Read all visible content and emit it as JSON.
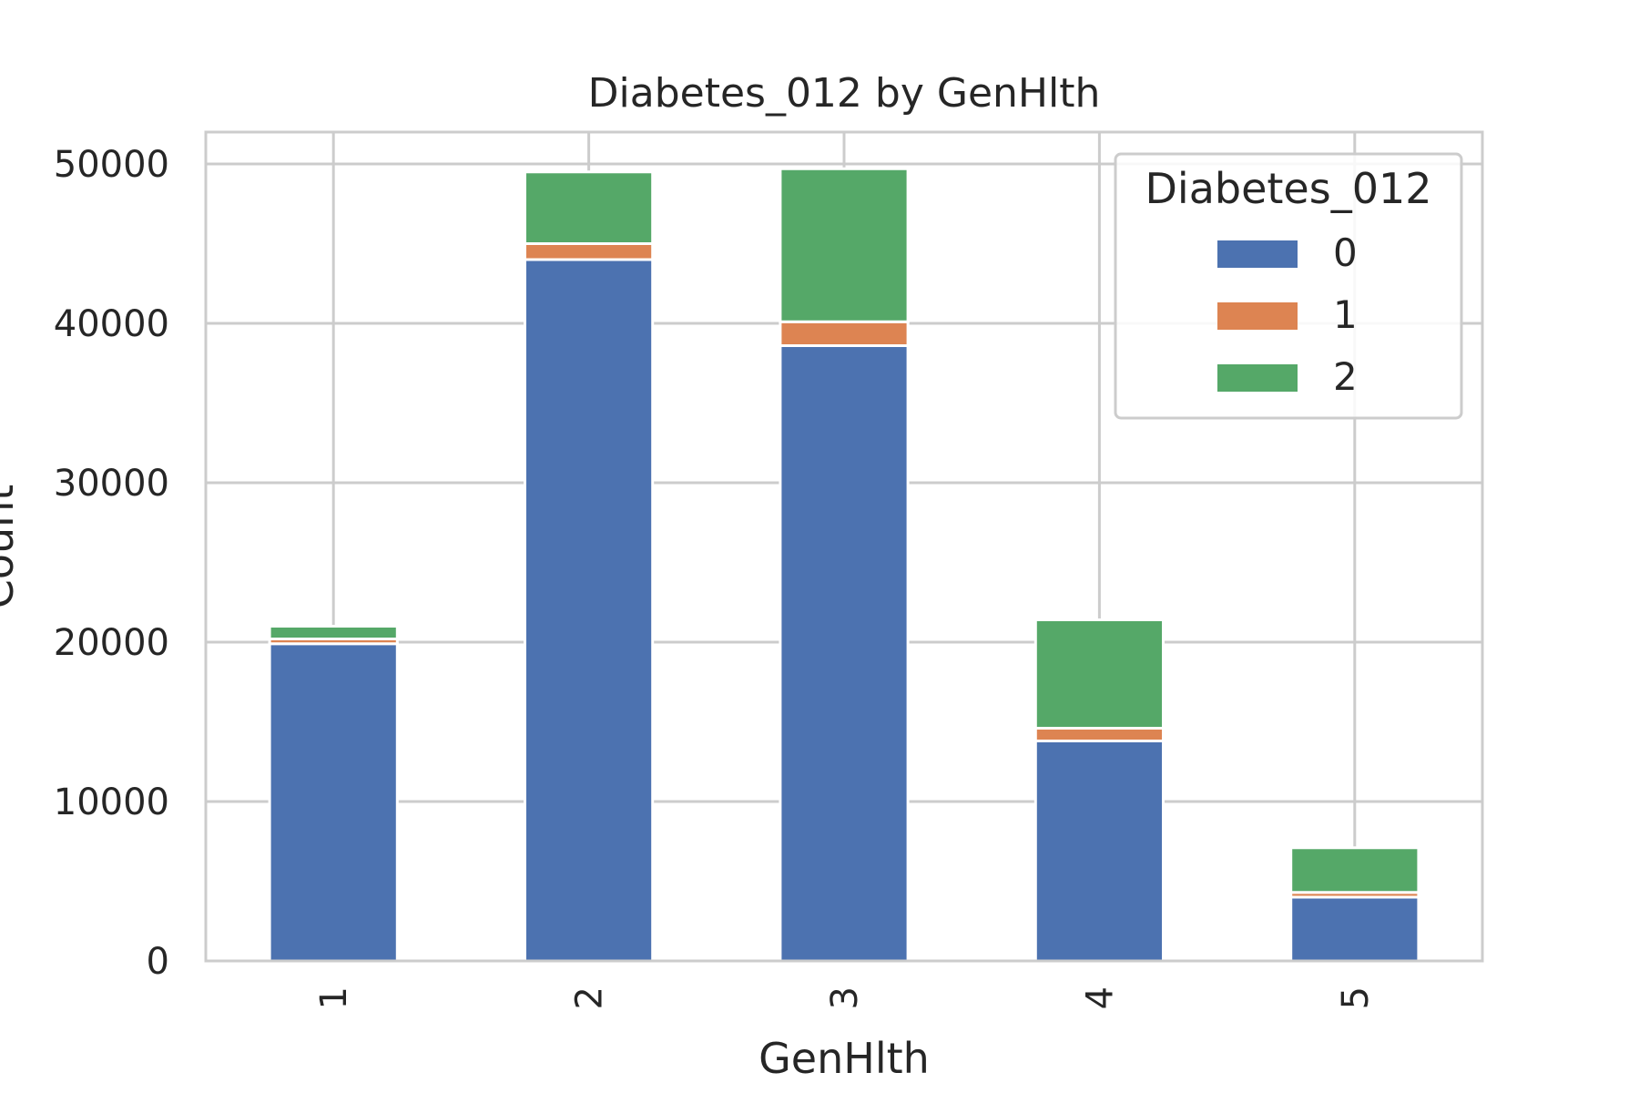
{
  "chart_data": {
    "type": "bar",
    "stacked": true,
    "title": "Diabetes_012 by GenHlth",
    "xlabel": "GenHlth",
    "ylabel": "Count",
    "categories": [
      "1",
      "2",
      "3",
      "4",
      "5"
    ],
    "series": [
      {
        "name": "0",
        "color": "#4c72b0",
        "values": [
          19900,
          44000,
          38600,
          13800,
          4000
        ]
      },
      {
        "name": "1",
        "color": "#dd8452",
        "values": [
          300,
          1000,
          1500,
          800,
          300
        ]
      },
      {
        "name": "2",
        "color": "#55a868",
        "values": [
          800,
          4500,
          9600,
          6800,
          2800
        ]
      }
    ],
    "ylim": [
      0,
      52000
    ],
    "yticks": [
      "0",
      "10000",
      "20000",
      "30000",
      "40000",
      "50000"
    ],
    "ytick_values": [
      0,
      10000,
      20000,
      30000,
      40000,
      50000
    ],
    "grid": true,
    "legend": {
      "title": "Diabetes_012",
      "placement": "top-right"
    }
  }
}
